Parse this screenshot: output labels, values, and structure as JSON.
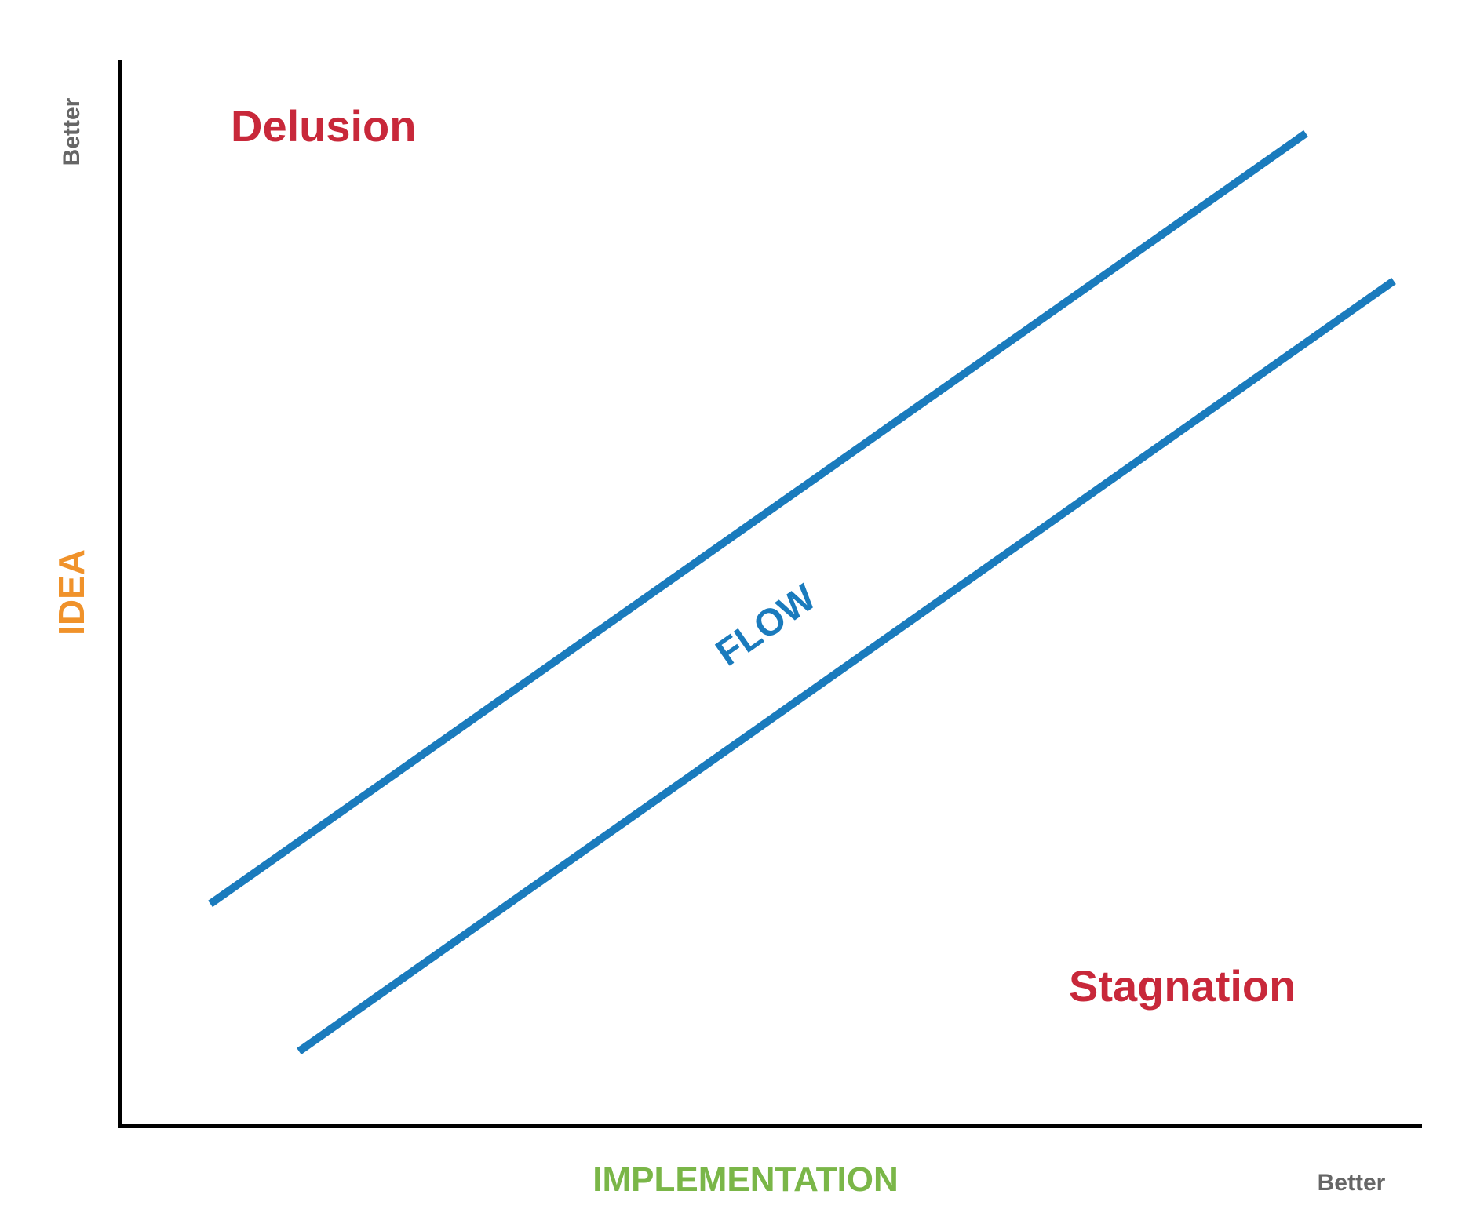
{
  "diagram": {
    "y_axis": {
      "label": "IDEA",
      "end_label": "Better"
    },
    "x_axis": {
      "label": "IMPLEMENTATION",
      "end_label": "Better"
    },
    "regions": {
      "upper_left": "Delusion",
      "center": "FLOW",
      "lower_right": "Stagnation"
    },
    "colors": {
      "axis": "#000000",
      "band_lines": "#1a7bbd",
      "region_text": "#c8283a",
      "flow_text": "#1a7bbd",
      "idea_label": "#f0922a",
      "implementation_label": "#7ab648",
      "better_label": "#666666"
    }
  }
}
